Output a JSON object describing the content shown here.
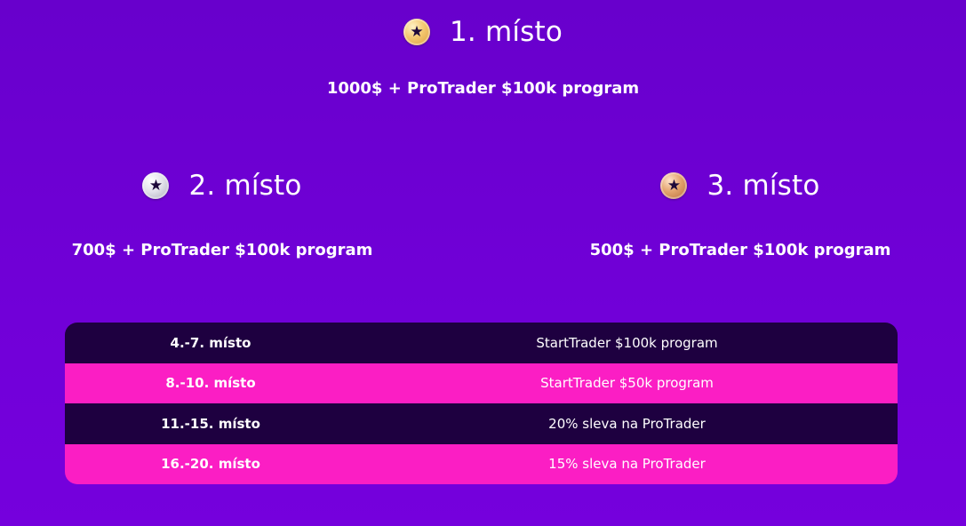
{
  "top_places": [
    {
      "title": "1. místo",
      "prize": "1000$ + ProTrader $100k program",
      "medal": "gold-star-medal-icon"
    },
    {
      "title": "2. místo",
      "prize": "700$ + ProTrader $100k program",
      "medal": "silver-star-medal-icon"
    },
    {
      "title": "3. místo",
      "prize": "500$ + ProTrader $100k program",
      "medal": "bronze-star-medal-icon"
    }
  ],
  "reward_table": [
    {
      "rank": "4.-7. místo",
      "prize": "StartTrader $100k program"
    },
    {
      "rank": "8.-10. místo",
      "prize": "StartTrader $50k program"
    },
    {
      "rank": "11.-15. místo",
      "prize": "20% sleva na ProTrader"
    },
    {
      "rank": "16.-20. místo",
      "prize": "15% sleva na ProTrader"
    }
  ],
  "colors": {
    "background": "#6A00D0",
    "row_dark": "#1E0040",
    "row_pink": "#FB1EC4",
    "text": "#FFFFFF"
  }
}
